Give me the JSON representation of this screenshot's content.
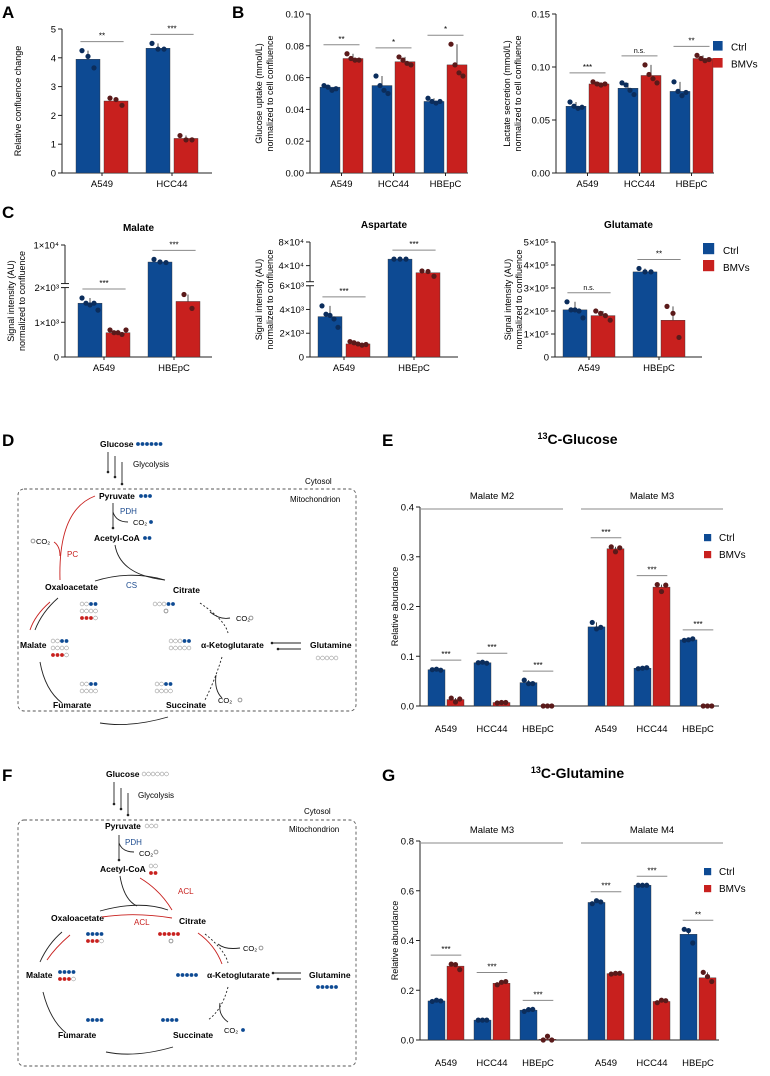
{
  "colors": {
    "ctrl": "#0d4a93",
    "bmvs": "#c8201e",
    "ctrl_dot": "#0b2d5c",
    "bmvs_dot": "#5a1a1a",
    "axis": "#222222",
    "sig": "#888888"
  },
  "legend": {
    "ctrl": "Ctrl",
    "bmvs": "BMVs"
  },
  "panels": {
    "A": "A",
    "B": "B",
    "C": "C",
    "D": "D",
    "E": "E",
    "F": "F",
    "G": "G"
  },
  "chart_data": [
    {
      "id": "A",
      "type": "bar",
      "title": "",
      "ylabel": "Relative confluence change",
      "ylim": [
        0,
        5
      ],
      "yticks": [
        "0",
        "1",
        "2",
        "3",
        "4",
        "5"
      ],
      "categories": [
        "A549",
        "HCC44"
      ],
      "series": [
        {
          "name": "Ctrl",
          "values": [
            3.95,
            4.33
          ],
          "points": [
            [
              4.25,
              4.05,
              3.65
            ],
            [
              4.5,
              4.3,
              4.3
            ]
          ]
        },
        {
          "name": "BMVs",
          "values": [
            2.5,
            1.2
          ],
          "points": [
            [
              2.6,
              2.55,
              2.35
            ],
            [
              1.3,
              1.15,
              1.15
            ]
          ]
        }
      ],
      "significance": [
        "**",
        "***"
      ]
    },
    {
      "id": "B1",
      "type": "bar",
      "title": "",
      "ylabel": "Glucose uptake (mmol/L)\nnormalized to cell confluence",
      "ylim": [
        0,
        0.1
      ],
      "yticks": [
        "0.00",
        "0.02",
        "0.04",
        "0.06",
        "0.08",
        "0.10"
      ],
      "categories": [
        "A549",
        "HCC44",
        "HBEpC"
      ],
      "series": [
        {
          "name": "Ctrl",
          "values": [
            0.054,
            0.055,
            0.045
          ],
          "points": [
            [
              0.055,
              0.054,
              0.052,
              0.053
            ],
            [
              0.061,
              0.055,
              0.052,
              0.05
            ],
            [
              0.047,
              0.045,
              0.044,
              0.045
            ]
          ]
        },
        {
          "name": "BMVs",
          "values": [
            0.072,
            0.07,
            0.068
          ],
          "points": [
            [
              0.075,
              0.072,
              0.071,
              0.071
            ],
            [
              0.073,
              0.071,
              0.069,
              0.068
            ],
            [
              0.081,
              0.068,
              0.063,
              0.061
            ]
          ]
        }
      ],
      "significance": [
        "**",
        "*",
        "*"
      ]
    },
    {
      "id": "B2",
      "type": "bar",
      "title": "",
      "ylabel": "Lactate secretion (mmol/L)\nnormalized to cell confluence",
      "ylim": [
        0,
        0.15
      ],
      "yticks": [
        "0.00",
        "0.05",
        "0.10",
        "0.15"
      ],
      "categories": [
        "A549",
        "HCC44",
        "HBEpC"
      ],
      "series": [
        {
          "name": "Ctrl",
          "values": [
            0.063,
            0.08,
            0.077
          ],
          "points": [
            [
              0.067,
              0.063,
              0.061,
              0.062
            ],
            [
              0.085,
              0.083,
              0.078,
              0.074
            ],
            [
              0.086,
              0.077,
              0.073,
              0.076
            ]
          ]
        },
        {
          "name": "BMVs",
          "values": [
            0.084,
            0.092,
            0.108
          ],
          "points": [
            [
              0.086,
              0.084,
              0.083,
              0.084
            ],
            [
              0.102,
              0.093,
              0.089,
              0.085
            ],
            [
              0.111,
              0.108,
              0.106,
              0.107
            ]
          ]
        }
      ],
      "significance": [
        "***",
        "n.s.",
        "**"
      ]
    },
    {
      "id": "C1",
      "type": "bar",
      "title": "Malate",
      "ylabel": "Signal intensity (AU)\nnormalized to confluence",
      "ylim": [
        0,
        10000
      ],
      "axis_break": [
        2000,
        2000
      ],
      "yticks": [
        "0",
        "1×10³",
        "2×10³",
        "1×10⁴"
      ],
      "categories": [
        "A549",
        "HBEpC"
      ],
      "series": [
        {
          "name": "Ctrl",
          "values": [
            1550,
            6800
          ],
          "points": [
            [
              1700,
              1550,
              1500,
              1550,
              1350
            ],
            [
              7300,
              6800,
              6700
            ]
          ]
        },
        {
          "name": "BMVs",
          "values": [
            700,
            1600
          ],
          "points": [
            [
              780,
              700,
              700,
              650,
              780
            ],
            [
              1800,
              1400
            ]
          ]
        }
      ],
      "significance": [
        "***",
        "***"
      ]
    },
    {
      "id": "C2",
      "type": "bar",
      "title": "Aspartate",
      "ylabel": "Signal intensity (AU)\nnormalized to confluence",
      "ylim": [
        0,
        80000
      ],
      "axis_break": [
        6000,
        6000
      ],
      "yticks": [
        "0",
        "2×10³",
        "4×10³",
        "6×10³",
        "4×10⁴",
        "8×10⁴"
      ],
      "categories": [
        "A549",
        "HBEpC"
      ],
      "series": [
        {
          "name": "Ctrl",
          "values": [
            3400,
            51000
          ],
          "points": [
            [
              4300,
              3600,
              3500,
              3200,
              2500
            ],
            [
              51000,
              51000,
              51000
            ]
          ]
        },
        {
          "name": "BMVs",
          "values": [
            1100,
            28000
          ],
          "points": [
            [
              1300,
              1200,
              1100,
              1000,
              1050
            ],
            [
              31000,
              30000,
              22000
            ]
          ]
        }
      ],
      "significance": [
        "***",
        "***"
      ]
    },
    {
      "id": "C3",
      "type": "bar",
      "title": "Glutamate",
      "ylabel": "Signal intensity (AU)\nnormalized to confluence",
      "ylim": [
        0,
        500000
      ],
      "yticks": [
        "0",
        "1×10⁵",
        "2×10⁵",
        "3×10⁵",
        "4×10⁵",
        "5×10⁵"
      ],
      "categories": [
        "A549",
        "HBEpC"
      ],
      "series": [
        {
          "name": "Ctrl",
          "values": [
            205000,
            370000
          ],
          "points": [
            [
              240000,
              205000,
              205000,
              200000,
              170000
            ],
            [
              385000,
              370000,
              370000
            ]
          ]
        },
        {
          "name": "BMVs",
          "values": [
            180000,
            160000
          ],
          "points": [
            [
              200000,
              190000,
              180000,
              160000
            ],
            [
              220000,
              190000,
              85000
            ]
          ]
        }
      ],
      "significance": [
        "n.s.",
        "**"
      ]
    },
    {
      "id": "E",
      "type": "bar",
      "title": "13C-Glucose",
      "title_sup": "13",
      "title_main": "C-Glucose",
      "ylabel": "Relative abundance",
      "ylim": [
        0,
        0.4
      ],
      "yticks": [
        "0.0",
        "0.1",
        "0.2",
        "0.3",
        "0.4"
      ],
      "groups": [
        "Malate M2",
        "Malate M3"
      ],
      "categories": [
        "A549",
        "HCC44",
        "HBEpC",
        "A549",
        "HCC44",
        "HBEpC"
      ],
      "series": [
        {
          "name": "Ctrl",
          "values": [
            0.073,
            0.087,
            0.047,
            0.159,
            0.076,
            0.133
          ],
          "points": [
            [
              0.073,
              0.074,
              0.072
            ],
            [
              0.087,
              0.088,
              0.086
            ],
            [
              0.052,
              0.045,
              0.045
            ],
            [
              0.168,
              0.155,
              0.158
            ],
            [
              0.075,
              0.076,
              0.077
            ],
            [
              0.132,
              0.133,
              0.135
            ]
          ]
        },
        {
          "name": "BMVs",
          "values": [
            0.013,
            0.007,
            0.0,
            0.316,
            0.239,
            0.0
          ],
          "points": [
            [
              0.016,
              0.008,
              0.014
            ],
            [
              0.006,
              0.007,
              0.007
            ],
            [
              0,
              0,
              0
            ],
            [
              0.32,
              0.31,
              0.318
            ],
            [
              0.244,
              0.23,
              0.243
            ],
            [
              0,
              0,
              0
            ]
          ]
        }
      ],
      "significance": [
        "***",
        "***",
        "***",
        "***",
        "***",
        "***"
      ]
    },
    {
      "id": "G",
      "type": "bar",
      "title": "13C-Glutamine",
      "title_sup": "13",
      "title_main": "C-Glutamine",
      "ylabel": "Relative abundance",
      "ylim": [
        0,
        0.8
      ],
      "yticks": [
        "0.0",
        "0.2",
        "0.4",
        "0.6",
        "0.8"
      ],
      "groups": [
        "Malate M3",
        "Malate M4"
      ],
      "categories": [
        "A549",
        "HCC44",
        "HBEpC",
        "A549",
        "HCC44",
        "HBEpC"
      ],
      "series": [
        {
          "name": "Ctrl",
          "values": [
            0.157,
            0.08,
            0.12,
            0.553,
            0.622,
            0.425
          ],
          "points": [
            [
              0.155,
              0.16,
              0.157
            ],
            [
              0.08,
              0.08,
              0.08
            ],
            [
              0.115,
              0.122,
              0.123
            ],
            [
              0.548,
              0.56,
              0.555
            ],
            [
              0.622,
              0.622,
              0.622
            ],
            [
              0.445,
              0.44,
              0.39
            ]
          ]
        },
        {
          "name": "BMVs",
          "values": [
            0.297,
            0.228,
            0.003,
            0.267,
            0.155,
            0.25
          ],
          "points": [
            [
              0.305,
              0.303,
              0.283
            ],
            [
              0.222,
              0.232,
              0.235
            ],
            [
              0.0,
              0.015,
              0.0
            ],
            [
              0.265,
              0.268,
              0.268
            ],
            [
              0.15,
              0.16,
              0.158
            ],
            [
              0.272,
              0.255,
              0.235
            ]
          ]
        }
      ],
      "significance": [
        "***",
        "***",
        "***",
        "***",
        "***",
        "**"
      ]
    }
  ],
  "diagram_D": {
    "glucose": "Glucose",
    "glycolysis": "Glycolysis",
    "cytosol": "Cytosol",
    "mitochondrion": "Mitochondrion",
    "pyruvate": "Pyruvate",
    "pdh": "PDH",
    "co2": "CO₂",
    "acetylcoa": "Acetyl-CoA",
    "pc": "PC",
    "cs": "CS",
    "oxaloacetate": "Oxaloacetate",
    "citrate": "Citrate",
    "akg": "α-Ketoglutarate",
    "glutamine": "Glutamine",
    "malate": "Malate",
    "fumarate": "Fumarate",
    "succinate": "Succinate"
  },
  "diagram_F": {
    "glucose": "Glucose",
    "glycolysis": "Glycolysis",
    "cytosol": "Cytosol",
    "mitochondrion": "Mitochondrion",
    "pyruvate": "Pyruvate",
    "pdh": "PDH",
    "co2": "CO₂",
    "acetylcoa": "Acetyl-CoA",
    "acl": "ACL",
    "oxaloacetate": "Oxaloacetate",
    "citrate": "Citrate",
    "akg": "α-Ketoglutarate",
    "glutamine": "Glutamine",
    "malate": "Malate",
    "fumarate": "Fumarate",
    "succinate": "Succinate"
  }
}
